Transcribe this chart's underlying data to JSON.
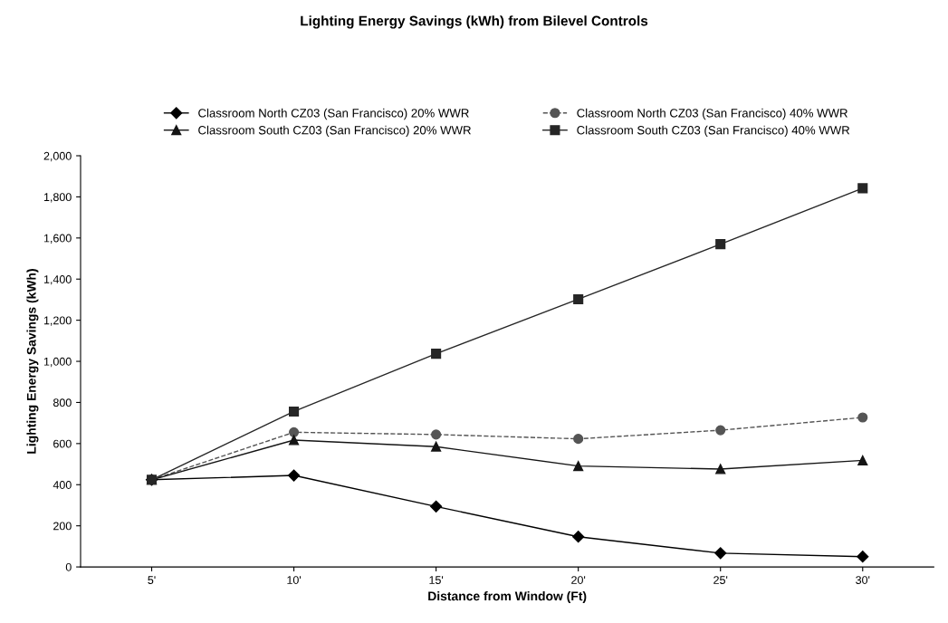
{
  "chart_data": {
    "type": "line",
    "title": "Lighting Energy Savings (kWh) from Bilevel Controls",
    "xlabel": "Distance from Window (Ft)",
    "ylabel": "Lighting Energy Savings (kWh)",
    "categories": [
      "5'",
      "10'",
      "15'",
      "20'",
      "25'",
      "30'"
    ],
    "series": [
      {
        "name": "Classroom North CZ03 (San Francisco) 20% WWR",
        "color": "#000000",
        "marker": "diamond",
        "line_style": "solid",
        "values": [
          424,
          445,
          294,
          147,
          67,
          50
        ]
      },
      {
        "name": "Classroom North CZ03 (San Francisco) 40% WWR",
        "color": "#555555",
        "marker": "circle",
        "line_style": "dashed",
        "values": [
          424,
          655,
          644,
          623,
          665,
          727
        ]
      },
      {
        "name": "Classroom South CZ03 (San Francisco) 20% WWR",
        "color": "#141414",
        "marker": "triangle",
        "line_style": "solid",
        "values": [
          424,
          617,
          585,
          491,
          476,
          518
        ]
      },
      {
        "name": "Classroom South CZ03 (San Francisco) 40% WWR",
        "color": "#262626",
        "marker": "square",
        "line_style": "solid",
        "values": [
          424,
          756,
          1037,
          1302,
          1570,
          1842
        ]
      }
    ],
    "ylim": [
      0,
      2000
    ],
    "yticks": [
      {
        "value": 0,
        "label": "0"
      },
      {
        "value": 200,
        "label": "200"
      },
      {
        "value": 400,
        "label": "400"
      },
      {
        "value": 600,
        "label": "600"
      },
      {
        "value": 800,
        "label": "800"
      },
      {
        "value": 1000,
        "label": "1,000"
      },
      {
        "value": 1200,
        "label": "1,200"
      },
      {
        "value": 1400,
        "label": "1,400"
      },
      {
        "value": 1600,
        "label": "1,600"
      },
      {
        "value": 1800,
        "label": "1,800"
      },
      {
        "value": 2000,
        "label": "2,000"
      }
    ],
    "grid": false,
    "legend": "top"
  }
}
